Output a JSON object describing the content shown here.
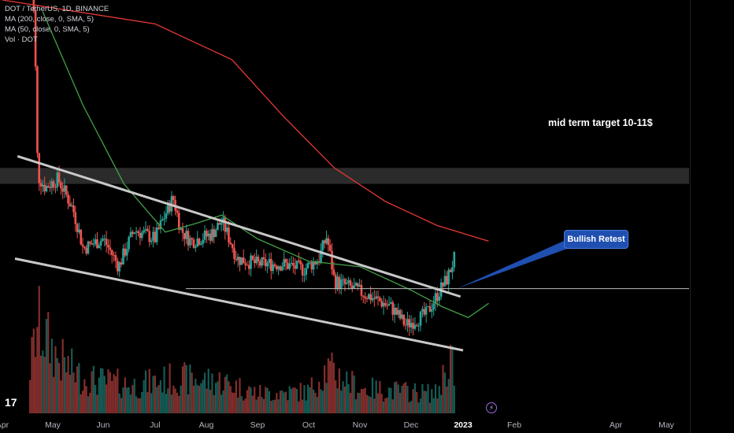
{
  "legend": {
    "symbol": "DOT / TetherUS, 1D, BINANCE",
    "ma200": "MA (200, close, 0, SMA, 5)",
    "ma50": "MA (50, close, 0, SMA, 5)",
    "vol": "Vol · DOT"
  },
  "annotations": {
    "target": "mid term target 10-11$",
    "callout": "Bullish Retest"
  },
  "logo": "17",
  "colors": {
    "background": "#000000",
    "up": "#26a69a",
    "down": "#ef5350",
    "ma200": "#e53935",
    "ma50": "#43a047",
    "trendline": "#c8c8c8",
    "zone": "#3a3a3a",
    "callout": "#1f4fb0"
  },
  "chart_data": {
    "type": "candlestick",
    "x_ticks": [
      "Apr",
      "May",
      "Jun",
      "Jul",
      "Aug",
      "Sep",
      "Oct",
      "Nov",
      "Dec",
      "2023",
      "Feb",
      "Apr",
      "May"
    ],
    "ma200": [
      [
        0,
        30
      ],
      [
        3,
        26
      ],
      [
        4.5,
        21
      ],
      [
        5.5,
        15
      ],
      [
        6.5,
        11
      ],
      [
        7.5,
        9
      ],
      [
        8.5,
        7.8
      ],
      [
        9.5,
        7.1
      ]
    ],
    "ma50": [
      [
        0.8,
        28
      ],
      [
        1.6,
        16
      ],
      [
        2.4,
        10
      ],
      [
        3.2,
        7.5
      ],
      [
        3.8,
        7.9
      ],
      [
        4.3,
        8.3
      ],
      [
        5,
        7.2
      ],
      [
        6,
        6.3
      ],
      [
        7,
        6.1
      ],
      [
        8,
        5.3
      ],
      [
        8.6,
        4.8
      ],
      [
        9.1,
        4.5
      ],
      [
        9.5,
        4.9
      ]
    ],
    "price_path": [
      [
        0.55,
        44
      ],
      [
        0.7,
        10.5
      ],
      [
        0.85,
        9.8
      ],
      [
        1.1,
        10.3
      ],
      [
        1.4,
        8.6
      ],
      [
        1.6,
        6.8
      ],
      [
        2,
        7.2
      ],
      [
        2.3,
        6.1
      ],
      [
        2.6,
        7.6
      ],
      [
        3,
        7.2
      ],
      [
        3.35,
        9.2
      ],
      [
        3.5,
        7.6
      ],
      [
        3.7,
        7.1
      ],
      [
        4.1,
        7.4
      ],
      [
        4.3,
        8.0
      ],
      [
        4.6,
        6.4
      ],
      [
        5,
        6.2
      ],
      [
        5.5,
        6.2
      ],
      [
        5.9,
        6.0
      ],
      [
        6.2,
        6.4
      ],
      [
        6.35,
        7.3
      ],
      [
        6.5,
        5.6
      ],
      [
        6.8,
        5.4
      ],
      [
        7.2,
        5.1
      ],
      [
        7.6,
        4.8
      ],
      [
        7.9,
        4.3
      ],
      [
        8.3,
        4.6
      ],
      [
        8.7,
        5.7
      ],
      [
        8.85,
        6.5
      ]
    ],
    "volume_path": [
      [
        0.55,
        0.45
      ],
      [
        0.7,
        0.9
      ],
      [
        1.1,
        0.55
      ],
      [
        1.6,
        0.35
      ],
      [
        2.6,
        0.28
      ],
      [
        3.4,
        0.35
      ],
      [
        4.3,
        0.32
      ],
      [
        5,
        0.2
      ],
      [
        6,
        0.22
      ],
      [
        6.35,
        0.45
      ],
      [
        7,
        0.25
      ],
      [
        8.5,
        0.2
      ],
      [
        8.8,
        0.65
      ]
    ],
    "falling_wedge": {
      "upper": [
        [
          0.3,
          11.8
        ],
        [
          8.95,
          5.1
        ]
      ],
      "lower": [
        [
          0.25,
          6.4
        ],
        [
          9.0,
          3.7
        ]
      ]
    },
    "retest_level": 5.35,
    "target_zone": [
      10,
      11
    ]
  }
}
